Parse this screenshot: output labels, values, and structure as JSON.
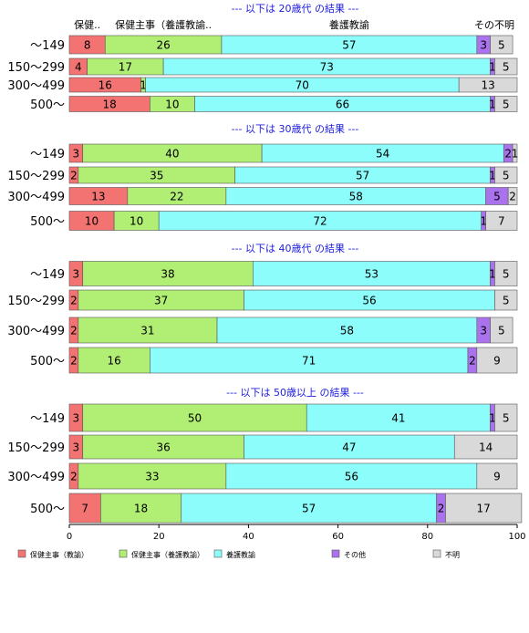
{
  "chart_data": {
    "type": "bar",
    "orientation": "horizontal",
    "stacked": true,
    "xlim": [
      0,
      100
    ],
    "xticks": [
      0,
      20,
      40,
      60,
      80,
      100
    ],
    "series": [
      {
        "name": "保健主事（教諭）",
        "color": "#f37373"
      },
      {
        "name": "保健主事（養護教諭）",
        "color": "#b0ee74"
      },
      {
        "name": "養護教諭",
        "color": "#8dfdfc"
      },
      {
        "name": "その他",
        "color": "#ab72ee"
      },
      {
        "name": "不明",
        "color": "#d9d9d9"
      }
    ],
    "column_headers": [
      {
        "label": "保健..",
        "series": 0
      },
      {
        "label": "保健主事（養護教諭..",
        "series": 1
      },
      {
        "label": "養護教諭",
        "series": 2
      },
      {
        "label": "その不明",
        "series": 3
      }
    ],
    "groups": [
      {
        "title": "--- 以下は 20歳代 の結果 ---",
        "rows": [
          {
            "label": "～149",
            "values": [
              8,
              26,
              57,
              3,
              5
            ]
          },
          {
            "label": "150～299",
            "values": [
              4,
              17,
              73,
              1,
              5
            ]
          },
          {
            "label": "300～499",
            "values": [
              16,
              1,
              70,
              0,
              13
            ]
          },
          {
            "label": "500～",
            "values": [
              18,
              10,
              66,
              1,
              5
            ]
          }
        ]
      },
      {
        "title": "--- 以下は 30歳代 の結果 ---",
        "rows": [
          {
            "label": "～149",
            "values": [
              3,
              40,
              54,
              2,
              1
            ]
          },
          {
            "label": "150～299",
            "values": [
              2,
              35,
              57,
              1,
              5
            ]
          },
          {
            "label": "300～499",
            "values": [
              13,
              22,
              58,
              5,
              2
            ]
          },
          {
            "label": "500～",
            "values": [
              10,
              10,
              72,
              1,
              7
            ]
          }
        ]
      },
      {
        "title": "--- 以下は 40歳代 の結果 ---",
        "rows": [
          {
            "label": "～149",
            "values": [
              3,
              38,
              53,
              1,
              5
            ]
          },
          {
            "label": "150～299",
            "values": [
              2,
              37,
              56,
              0,
              5
            ]
          },
          {
            "label": "300～499",
            "values": [
              2,
              31,
              58,
              3,
              5
            ]
          },
          {
            "label": "500～",
            "values": [
              2,
              16,
              71,
              2,
              9
            ]
          }
        ]
      },
      {
        "title": "--- 以下は 50歳以上 の結果 ---",
        "rows": [
          {
            "label": "～149",
            "values": [
              3,
              50,
              41,
              1,
              5
            ]
          },
          {
            "label": "150～299",
            "values": [
              3,
              36,
              47,
              0,
              14
            ]
          },
          {
            "label": "300～499",
            "values": [
              2,
              33,
              56,
              0,
              9
            ]
          },
          {
            "label": "500～",
            "values": [
              7,
              18,
              57,
              2,
              17
            ]
          }
        ]
      }
    ]
  }
}
